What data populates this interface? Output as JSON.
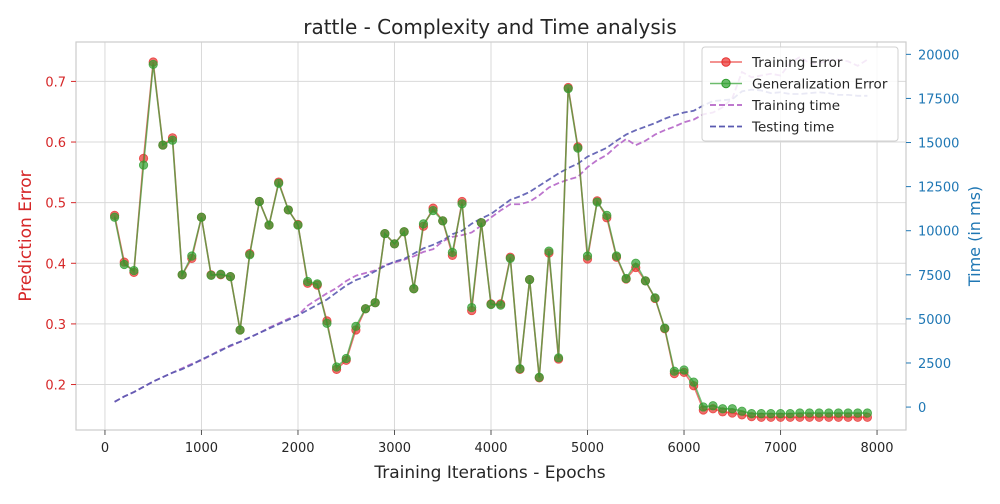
{
  "chart_data": {
    "type": "line",
    "title": "rattle - Complexity and Time analysis",
    "xlabel": "Training Iterations - Epochs",
    "ylabel_left": "Prediction Error",
    "ylabel_right": "Time (in ms)",
    "xlim": [
      -300,
      8300
    ],
    "ylim_left": [
      0.125,
      0.765
    ],
    "ylim_right": [
      -1300,
      20700
    ],
    "xticks": [
      0,
      1000,
      2000,
      3000,
      4000,
      5000,
      6000,
      7000,
      8000
    ],
    "yticks_left": [
      0.2,
      0.3,
      0.4,
      0.5,
      0.6,
      0.7
    ],
    "yticks_right": [
      0,
      2500,
      5000,
      7500,
      10000,
      12500,
      15000,
      17500,
      20000
    ],
    "grid": true,
    "legend_position": "top-right",
    "colors": {
      "training_error": "#e8302e",
      "generalization_error": "#2e9e2e",
      "training_time": "#b565c8",
      "testing_time": "#5a5ab0",
      "left_axis": "#d62728",
      "right_axis": "#1f77b4"
    },
    "x": [
      100,
      200,
      300,
      400,
      500,
      600,
      700,
      800,
      900,
      1000,
      1100,
      1200,
      1300,
      1400,
      1500,
      1600,
      1700,
      1800,
      1900,
      2000,
      2100,
      2200,
      2300,
      2400,
      2500,
      2600,
      2700,
      2800,
      2900,
      3000,
      3100,
      3200,
      3300,
      3400,
      3500,
      3600,
      3700,
      3800,
      3900,
      4000,
      4100,
      4200,
      4300,
      4400,
      4500,
      4600,
      4700,
      4800,
      4900,
      5000,
      5100,
      5200,
      5300,
      5400,
      5500,
      5600,
      5700,
      5800,
      5900,
      6000,
      6100,
      6200,
      6300,
      6400,
      6500,
      6600,
      6700,
      6800,
      6900,
      7000,
      7100,
      7200,
      7300,
      7400,
      7500,
      7600,
      7700,
      7800,
      7900
    ],
    "series": [
      {
        "name": "Training Error",
        "axis": "left",
        "style": "line-marker",
        "values": [
          0.479,
          0.402,
          0.385,
          0.573,
          0.732,
          0.595,
          0.607,
          0.381,
          0.408,
          0.476,
          0.381,
          0.381,
          0.378,
          0.29,
          0.416,
          0.502,
          0.463,
          0.534,
          0.488,
          0.464,
          0.367,
          0.364,
          0.305,
          0.225,
          0.24,
          0.29,
          0.325,
          0.335,
          0.449,
          0.432,
          0.452,
          0.358,
          0.461,
          0.491,
          0.47,
          0.413,
          0.502,
          0.322,
          0.467,
          0.333,
          0.333,
          0.41,
          0.225,
          0.373,
          0.211,
          0.417,
          0.242,
          0.69,
          0.592,
          0.407,
          0.503,
          0.475,
          0.41,
          0.374,
          0.393,
          0.371,
          0.342,
          0.292,
          0.218,
          0.22,
          0.198,
          0.158,
          0.16,
          0.155,
          0.153,
          0.15,
          0.147,
          0.146,
          0.146,
          0.146,
          0.146,
          0.146,
          0.146,
          0.146,
          0.146,
          0.146,
          0.146,
          0.146,
          0.146
        ]
      },
      {
        "name": "Generalization Error",
        "axis": "left",
        "style": "line-marker",
        "values": [
          0.476,
          0.398,
          0.388,
          0.562,
          0.728,
          0.595,
          0.603,
          0.381,
          0.412,
          0.476,
          0.38,
          0.382,
          0.378,
          0.29,
          0.414,
          0.502,
          0.463,
          0.532,
          0.488,
          0.463,
          0.37,
          0.366,
          0.301,
          0.229,
          0.243,
          0.296,
          0.325,
          0.335,
          0.449,
          0.432,
          0.452,
          0.358,
          0.465,
          0.487,
          0.47,
          0.418,
          0.498,
          0.327,
          0.467,
          0.332,
          0.331,
          0.408,
          0.226,
          0.373,
          0.212,
          0.42,
          0.244,
          0.688,
          0.59,
          0.412,
          0.501,
          0.479,
          0.412,
          0.375,
          0.4,
          0.371,
          0.343,
          0.293,
          0.222,
          0.224,
          0.204,
          0.163,
          0.165,
          0.16,
          0.16,
          0.156,
          0.152,
          0.152,
          0.152,
          0.152,
          0.152,
          0.153,
          0.153,
          0.153,
          0.153,
          0.153,
          0.153,
          0.153,
          0.153
        ]
      },
      {
        "name": "Training time",
        "axis": "right",
        "style": "dashed",
        "values": [
          300,
          600,
          850,
          1150,
          1450,
          1700,
          1950,
          2200,
          2450,
          2650,
          2950,
          3250,
          3450,
          3700,
          3950,
          4200,
          4500,
          4750,
          5000,
          5200,
          5750,
          6100,
          6450,
          6750,
          7150,
          7450,
          7600,
          7750,
          8050,
          8200,
          8350,
          8550,
          8800,
          8950,
          9400,
          9650,
          9750,
          9900,
          10300,
          10750,
          11150,
          11500,
          11500,
          11650,
          12000,
          12450,
          12700,
          12900,
          13050,
          13600,
          14000,
          14300,
          14800,
          15200,
          14850,
          15100,
          15450,
          15700,
          15900,
          16150,
          16300,
          16600,
          16700,
          17000,
          17500,
          19000,
          18700,
          18800,
          18900,
          18800,
          19500,
          19850,
          19500,
          19500,
          19650,
          19700,
          19600,
          19350,
          19700
        ]
      },
      {
        "name": "Testing time",
        "axis": "right",
        "style": "dashed",
        "values": [
          300,
          600,
          850,
          1150,
          1450,
          1700,
          1950,
          2150,
          2400,
          2700,
          2950,
          3200,
          3500,
          3700,
          3950,
          4200,
          4450,
          4700,
          4950,
          5200,
          5500,
          5800,
          6100,
          6500,
          6900,
          7200,
          7400,
          7700,
          8000,
          8250,
          8400,
          8700,
          9000,
          9200,
          9450,
          9800,
          10000,
          10400,
          10700,
          10950,
          11350,
          11750,
          11950,
          12200,
          12550,
          12900,
          13250,
          13550,
          13800,
          14200,
          14450,
          14700,
          15100,
          15450,
          15700,
          15900,
          16100,
          16350,
          16550,
          16700,
          16800,
          17100,
          17350,
          17400,
          17450,
          17900,
          18000,
          17950,
          17800,
          17850,
          17750,
          17750,
          17800,
          17850,
          17800,
          17700,
          17700,
          17650,
          17650
        ]
      }
    ]
  }
}
